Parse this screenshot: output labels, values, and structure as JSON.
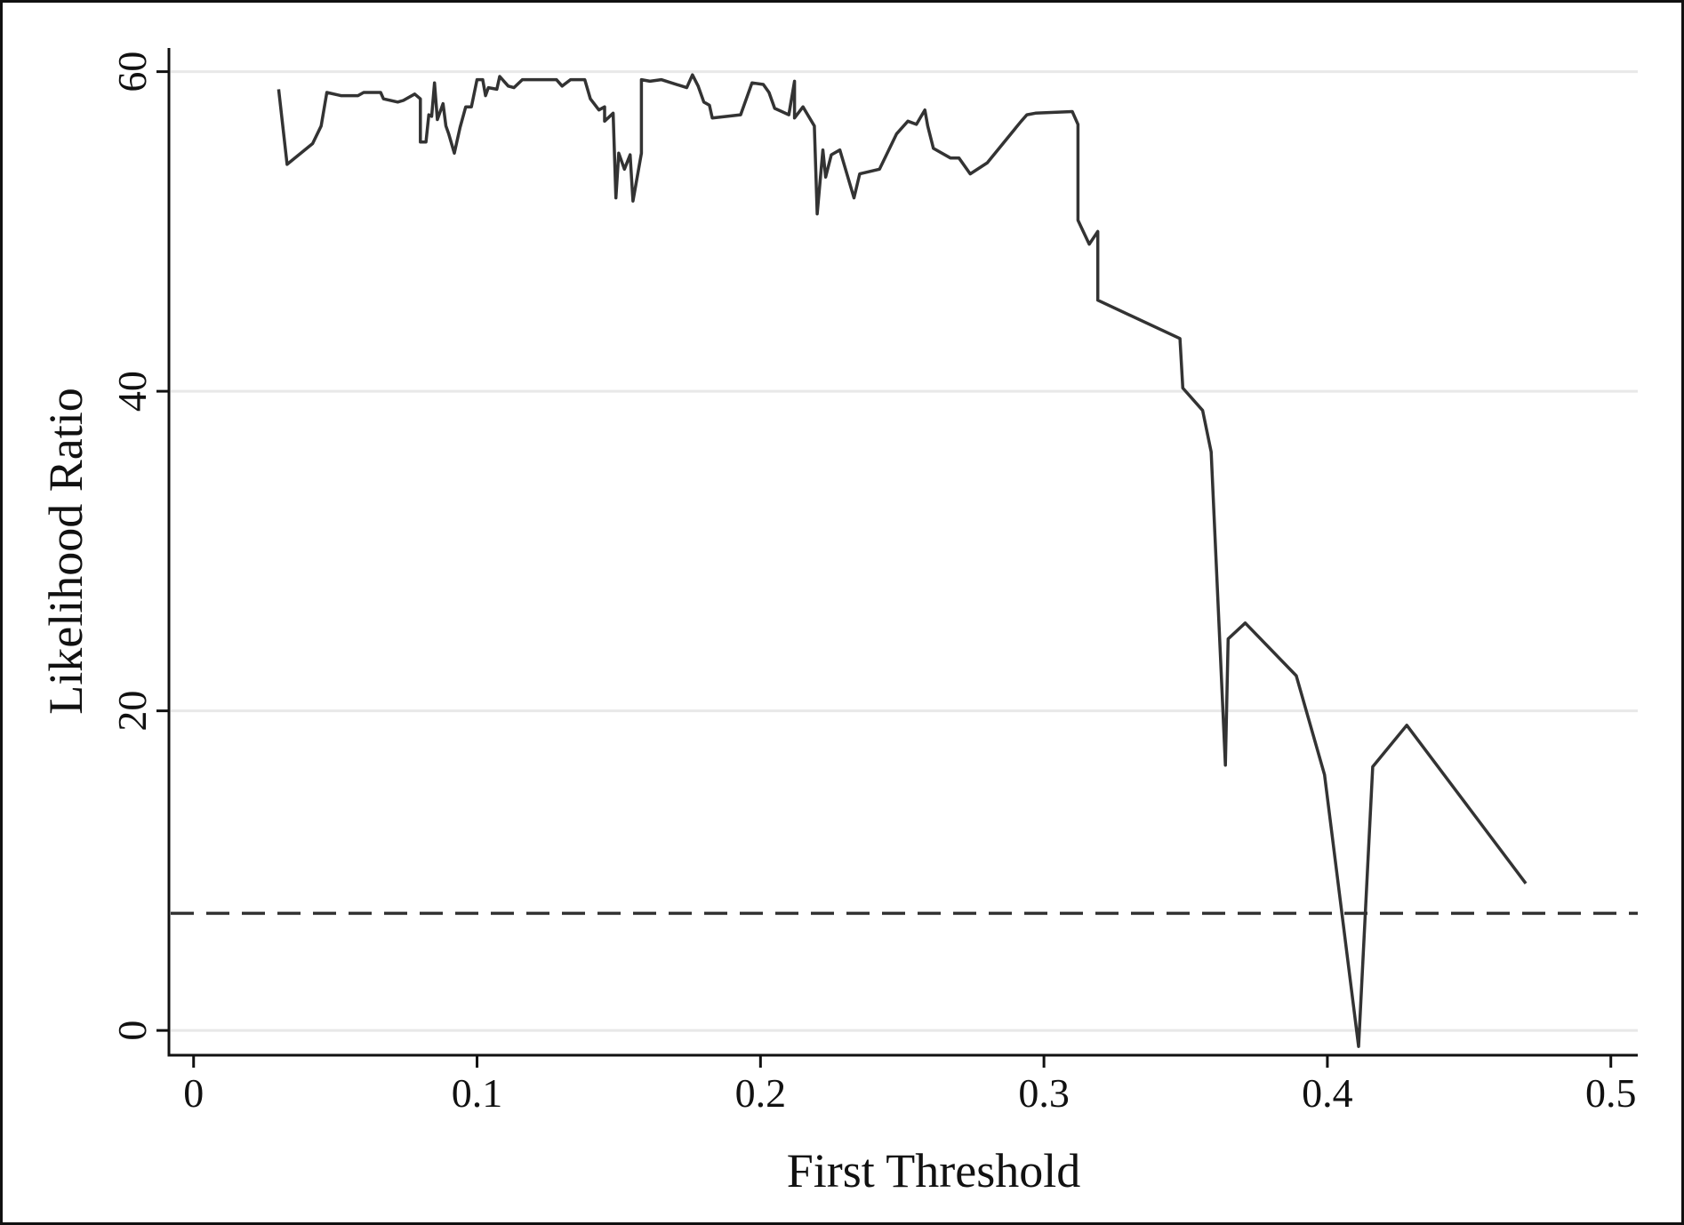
{
  "chart_data": {
    "type": "line",
    "x_label": "First Threshold",
    "y_label": "Likelihood Ratio",
    "xlim": [
      -0.0087,
      0.5095
    ],
    "ylim": [
      -1.55,
      61.48
    ],
    "xticks": [
      0,
      0.1,
      0.2,
      0.3,
      0.4,
      0.5
    ],
    "yticks": [
      0,
      20,
      40,
      60
    ],
    "grid": true,
    "reference_line": 7.33,
    "x": [
      0.03,
      0.033,
      0.042,
      0.045,
      0.047,
      0.052,
      0.058,
      0.06,
      0.066,
      0.067,
      0.072,
      0.074,
      0.078,
      0.08,
      0.08,
      0.082,
      0.083,
      0.084,
      0.085,
      0.086,
      0.088,
      0.089,
      0.09,
      0.092,
      0.094,
      0.096,
      0.098,
      0.1,
      0.102,
      0.103,
      0.104,
      0.107,
      0.108,
      0.111,
      0.113,
      0.116,
      0.128,
      0.13,
      0.133,
      0.138,
      0.14,
      0.143,
      0.145,
      0.145,
      0.148,
      0.149,
      0.15,
      0.152,
      0.154,
      0.155,
      0.158,
      0.158,
      0.161,
      0.165,
      0.174,
      0.176,
      0.178,
      0.18,
      0.182,
      0.183,
      0.193,
      0.197,
      0.201,
      0.203,
      0.205,
      0.21,
      0.212,
      0.212,
      0.215,
      0.219,
      0.22,
      0.222,
      0.223,
      0.225,
      0.228,
      0.233,
      0.235,
      0.242,
      0.248,
      0.252,
      0.255,
      0.258,
      0.259,
      0.261,
      0.267,
      0.27,
      0.274,
      0.28,
      0.292,
      0.294,
      0.297,
      0.31,
      0.312,
      0.312,
      0.316,
      0.319,
      0.319,
      0.348,
      0.349,
      0.356,
      0.359,
      0.364,
      0.365,
      0.371,
      0.389,
      0.399,
      0.411,
      0.416,
      0.428,
      0.47
    ],
    "series": [
      {
        "color": "#333333",
        "values": [
          58.9,
          54.2,
          55.5,
          56.6,
          58.7,
          58.5,
          58.5,
          58.7,
          58.7,
          58.3,
          58.1,
          58.2,
          58.6,
          58.3,
          55.6,
          55.6,
          57.3,
          57.2,
          59.3,
          57.0,
          58.0,
          56.6,
          56.1,
          54.9,
          56.5,
          57.8,
          57.8,
          59.5,
          59.5,
          58.5,
          59.0,
          58.9,
          59.7,
          59.1,
          59.0,
          59.5,
          59.5,
          59.1,
          59.5,
          59.5,
          58.3,
          57.6,
          57.8,
          56.9,
          57.4,
          52.1,
          54.9,
          53.9,
          54.8,
          51.9,
          54.9,
          59.5,
          59.4,
          59.5,
          59.0,
          59.8,
          59.1,
          58.1,
          57.9,
          57.1,
          57.3,
          59.3,
          59.2,
          58.7,
          57.7,
          57.3,
          59.4,
          57.1,
          57.8,
          56.6,
          51.1,
          55.1,
          53.4,
          54.8,
          55.1,
          52.1,
          53.6,
          53.9,
          56.1,
          56.9,
          56.7,
          57.6,
          56.6,
          55.2,
          54.6,
          54.6,
          53.6,
          54.3,
          56.9,
          57.3,
          57.4,
          57.5,
          56.7,
          50.7,
          49.2,
          50.0,
          45.7,
          43.3,
          40.2,
          38.8,
          36.2,
          16.6,
          24.5,
          25.5,
          22.2,
          16.0,
          -1.0,
          16.5,
          19.1,
          9.2
        ]
      }
    ]
  }
}
